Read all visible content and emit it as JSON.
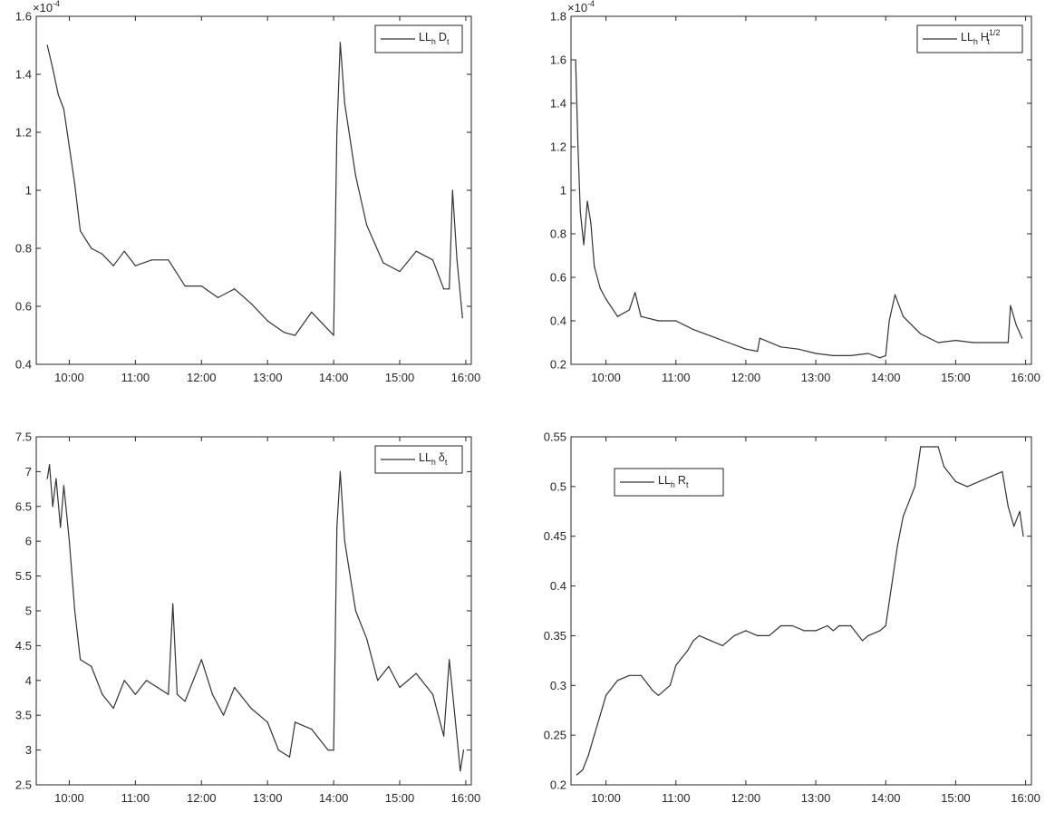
{
  "time_ticks": [
    "10:00",
    "11:00",
    "12:00",
    "13:00",
    "14:00",
    "15:00",
    "16:00"
  ],
  "chart_data": [
    {
      "type": "line",
      "title": "",
      "xlabel": "",
      "ylabel": "",
      "x_ticks": [
        "10:00",
        "11:00",
        "12:00",
        "13:00",
        "14:00",
        "15:00",
        "16:00"
      ],
      "xlim": [
        "09:30",
        "16:05"
      ],
      "ylim": [
        0.4,
        1.6
      ],
      "y_ticks": [
        "0.4",
        "0.6",
        "0.8",
        "1",
        "1.2",
        "1.4",
        "1.6"
      ],
      "exponent": "×10",
      "exponent_power": "-4",
      "legend": {
        "main": "LL",
        "sub1": "h",
        "mid": "D",
        "sub2": "t",
        "sup": "",
        "placement": "top-right"
      },
      "series": [
        {
          "name": "LL_h D_t",
          "x": [
            "09:40",
            "09:45",
            "09:50",
            "09:55",
            "10:00",
            "10:05",
            "10:10",
            "10:20",
            "10:30",
            "10:40",
            "10:50",
            "11:00",
            "11:15",
            "11:30",
            "11:45",
            "12:00",
            "12:15",
            "12:30",
            "12:45",
            "13:00",
            "13:15",
            "13:25",
            "13:40",
            "13:55",
            "14:00",
            "14:03",
            "14:06",
            "14:10",
            "14:20",
            "14:30",
            "14:45",
            "15:00",
            "15:15",
            "15:30",
            "15:40",
            "15:45",
            "15:48",
            "15:52",
            "15:57"
          ],
          "values": [
            1.5,
            1.42,
            1.33,
            1.28,
            1.15,
            1.02,
            0.86,
            0.8,
            0.78,
            0.74,
            0.79,
            0.74,
            0.76,
            0.76,
            0.67,
            0.67,
            0.63,
            0.66,
            0.61,
            0.55,
            0.51,
            0.5,
            0.58,
            0.52,
            0.5,
            1.2,
            1.51,
            1.3,
            1.05,
            0.88,
            0.75,
            0.72,
            0.79,
            0.76,
            0.66,
            0.66,
            1.0,
            0.76,
            0.56
          ]
        }
      ]
    },
    {
      "type": "line",
      "title": "",
      "xlabel": "",
      "ylabel": "",
      "x_ticks": [
        "10:00",
        "11:00",
        "12:00",
        "13:00",
        "14:00",
        "15:00",
        "16:00"
      ],
      "xlim": [
        "09:30",
        "16:05"
      ],
      "ylim": [
        0.2,
        1.8
      ],
      "y_ticks": [
        "0.2",
        "0.4",
        "0.6",
        "0.8",
        "1",
        "1.2",
        "1.4",
        "1.6",
        "1.8"
      ],
      "exponent": "×10",
      "exponent_power": "-4",
      "legend": {
        "main": "LL",
        "sub1": "h",
        "mid": "H",
        "sub2": "t",
        "sup": "1/2",
        "placement": "top-right"
      },
      "series": [
        {
          "name": "LL_h H_t^1/2",
          "x": [
            "09:34",
            "09:36",
            "09:38",
            "09:41",
            "09:44",
            "09:47",
            "09:50",
            "09:55",
            "10:00",
            "10:10",
            "10:20",
            "10:25",
            "10:30",
            "10:45",
            "11:00",
            "11:15",
            "11:30",
            "11:45",
            "12:00",
            "12:10",
            "12:12",
            "12:30",
            "12:45",
            "13:00",
            "13:15",
            "13:30",
            "13:45",
            "13:55",
            "14:00",
            "14:03",
            "14:08",
            "14:15",
            "14:30",
            "14:45",
            "15:00",
            "15:15",
            "15:30",
            "15:45",
            "15:47",
            "15:52",
            "15:57"
          ],
          "values": [
            1.6,
            1.2,
            0.9,
            0.75,
            0.95,
            0.85,
            0.65,
            0.55,
            0.5,
            0.42,
            0.45,
            0.53,
            0.42,
            0.4,
            0.4,
            0.36,
            0.33,
            0.3,
            0.27,
            0.26,
            0.32,
            0.28,
            0.27,
            0.25,
            0.24,
            0.24,
            0.25,
            0.23,
            0.24,
            0.4,
            0.52,
            0.42,
            0.34,
            0.3,
            0.31,
            0.3,
            0.3,
            0.3,
            0.47,
            0.38,
            0.32
          ]
        }
      ]
    },
    {
      "type": "line",
      "title": "",
      "xlabel": "",
      "ylabel": "",
      "x_ticks": [
        "10:00",
        "11:00",
        "12:00",
        "13:00",
        "14:00",
        "15:00",
        "16:00"
      ],
      "xlim": [
        "09:30",
        "16:05"
      ],
      "ylim": [
        2.5,
        7.5
      ],
      "y_ticks": [
        "2.5",
        "3",
        "3.5",
        "4",
        "4.5",
        "5",
        "5.5",
        "6",
        "6.5",
        "7",
        "7.5"
      ],
      "exponent": "",
      "exponent_power": "",
      "legend": {
        "main": "LL",
        "sub1": "h",
        "mid": "δ",
        "sub2": "t",
        "sup": "",
        "placement": "top-right"
      },
      "series": [
        {
          "name": "LL_h δ_t",
          "x": [
            "09:40",
            "09:42",
            "09:45",
            "09:48",
            "09:52",
            "09:55",
            "10:00",
            "10:05",
            "10:10",
            "10:20",
            "10:30",
            "10:40",
            "10:50",
            "11:00",
            "11:10",
            "11:20",
            "11:30",
            "11:34",
            "11:38",
            "11:45",
            "12:00",
            "12:10",
            "12:20",
            "12:30",
            "12:45",
            "13:00",
            "13:10",
            "13:20",
            "13:25",
            "13:40",
            "13:55",
            "14:00",
            "14:03",
            "14:06",
            "14:10",
            "14:20",
            "14:30",
            "14:40",
            "14:50",
            "15:00",
            "15:15",
            "15:30",
            "15:40",
            "15:45",
            "15:50",
            "15:55",
            "15:58"
          ],
          "values": [
            6.9,
            7.1,
            6.5,
            6.9,
            6.2,
            6.8,
            6.0,
            5.0,
            4.3,
            4.2,
            3.8,
            3.6,
            4.0,
            3.8,
            4.0,
            3.9,
            3.8,
            5.1,
            3.8,
            3.7,
            4.3,
            3.8,
            3.5,
            3.9,
            3.6,
            3.4,
            3.0,
            2.9,
            3.4,
            3.3,
            3.0,
            3.0,
            6.2,
            7.0,
            6.0,
            5.0,
            4.6,
            4.0,
            4.2,
            3.9,
            4.1,
            3.8,
            3.2,
            4.3,
            3.5,
            2.7,
            3.0
          ]
        }
      ]
    },
    {
      "type": "line",
      "title": "",
      "xlabel": "",
      "ylabel": "",
      "x_ticks": [
        "10:00",
        "11:00",
        "12:00",
        "13:00",
        "14:00",
        "15:00",
        "16:00"
      ],
      "xlim": [
        "09:30",
        "16:05"
      ],
      "ylim": [
        0.2,
        0.55
      ],
      "y_ticks": [
        "0.2",
        "0.25",
        "0.3",
        "0.35",
        "0.4",
        "0.45",
        "0.5",
        "0.55"
      ],
      "exponent": "",
      "exponent_power": "",
      "legend": {
        "main": "LL",
        "sub1": "h",
        "mid": "R",
        "sub2": "t",
        "sup": "",
        "placement": "top-left"
      },
      "series": [
        {
          "name": "LL_h R_t",
          "x": [
            "09:35",
            "09:40",
            "09:45",
            "09:50",
            "09:55",
            "10:00",
            "10:10",
            "10:20",
            "10:30",
            "10:40",
            "10:45",
            "10:55",
            "11:00",
            "11:10",
            "11:15",
            "11:20",
            "11:30",
            "11:40",
            "11:50",
            "12:00",
            "12:10",
            "12:20",
            "12:30",
            "12:40",
            "12:50",
            "13:00",
            "13:10",
            "13:15",
            "13:20",
            "13:30",
            "13:40",
            "13:45",
            "13:55",
            "14:00",
            "14:05",
            "14:10",
            "14:15",
            "14:25",
            "14:30",
            "14:45",
            "14:50",
            "15:00",
            "15:10",
            "15:20",
            "15:30",
            "15:40",
            "15:45",
            "15:50",
            "15:55",
            "15:58"
          ],
          "values": [
            0.21,
            0.215,
            0.23,
            0.25,
            0.27,
            0.29,
            0.305,
            0.31,
            0.31,
            0.295,
            0.29,
            0.3,
            0.32,
            0.335,
            0.345,
            0.35,
            0.345,
            0.34,
            0.35,
            0.355,
            0.35,
            0.35,
            0.36,
            0.36,
            0.355,
            0.355,
            0.36,
            0.355,
            0.36,
            0.36,
            0.345,
            0.35,
            0.355,
            0.36,
            0.4,
            0.44,
            0.47,
            0.5,
            0.54,
            0.54,
            0.52,
            0.505,
            0.5,
            0.505,
            0.51,
            0.515,
            0.48,
            0.46,
            0.475,
            0.45
          ]
        }
      ]
    }
  ]
}
